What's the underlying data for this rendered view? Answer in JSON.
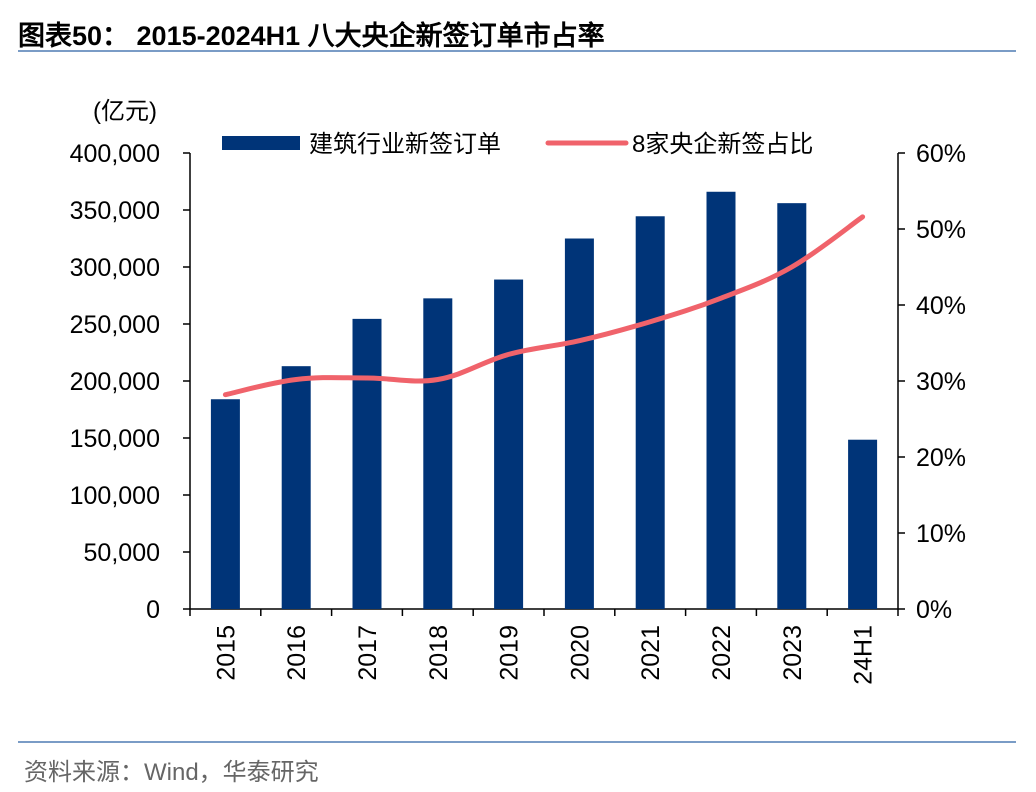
{
  "header": {
    "title": "图表50：  2015-2024H1 八大央企新签订单市占率"
  },
  "footer": {
    "source": "资料来源：Wind，华泰研究"
  },
  "chart_data": {
    "type": "bar",
    "categories": [
      "2015",
      "2016",
      "2017",
      "2018",
      "2019",
      "2020",
      "2021",
      "2022",
      "2023",
      "24H1"
    ],
    "left_axis": {
      "unit": "(亿元)",
      "ylim": [
        0,
        400000
      ],
      "ticks": [
        0,
        50000,
        100000,
        150000,
        200000,
        250000,
        300000,
        350000,
        400000
      ],
      "tick_labels": [
        "0",
        "50,000",
        "100,000",
        "150,000",
        "200,000",
        "250,000",
        "300,000",
        "350,000",
        "400,000"
      ]
    },
    "right_axis": {
      "ylim": [
        0,
        60
      ],
      "ticks": [
        0,
        10,
        20,
        30,
        40,
        50,
        60
      ],
      "tick_labels": [
        "0%",
        "10%",
        "20%",
        "30%",
        "40%",
        "50%",
        "60%"
      ]
    },
    "series": [
      {
        "name": "建筑行业新签订单",
        "type": "bar",
        "axis": "left",
        "color": "#003478",
        "values": [
          184000,
          213000,
          254500,
          272500,
          289000,
          325000,
          344500,
          366000,
          356000,
          148500
        ]
      },
      {
        "name": "8家央企新签占比",
        "type": "line",
        "axis": "right",
        "color": "#f0636b",
        "values": [
          28.2,
          30.2,
          30.4,
          30.2,
          33.5,
          35.3,
          37.8,
          40.9,
          45.0,
          51.6
        ]
      }
    ],
    "legend": {
      "position": "top",
      "items": [
        "建筑行业新签订单",
        "8家央企新签占比"
      ]
    },
    "grid": false
  }
}
